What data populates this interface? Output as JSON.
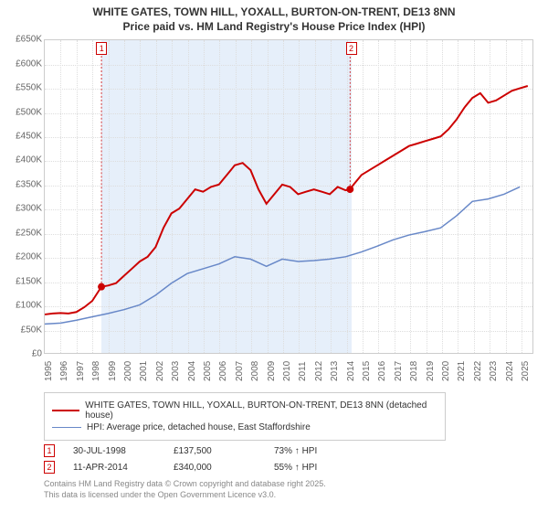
{
  "title_line1": "WHITE GATES, TOWN HILL, YOXALL, BURTON-ON-TRENT, DE13 8NN",
  "title_line2": "Price paid vs. HM Land Registry's House Price Index (HPI)",
  "chart": {
    "type": "line",
    "background_color": "#ffffff",
    "grid_color": "#dddddd",
    "border_color": "#cccccc",
    "x_min": 1995,
    "x_max": 2025.8,
    "y_min": 0,
    "y_max": 650000,
    "y_ticks": [
      0,
      50000,
      100000,
      150000,
      200000,
      250000,
      300000,
      350000,
      400000,
      450000,
      500000,
      550000,
      600000,
      650000
    ],
    "y_tick_labels": [
      "£0",
      "£50K",
      "£100K",
      "£150K",
      "£200K",
      "£250K",
      "£300K",
      "£350K",
      "£400K",
      "£450K",
      "£500K",
      "£550K",
      "£600K",
      "£650K"
    ],
    "x_ticks": [
      1995,
      1996,
      1997,
      1998,
      1999,
      2000,
      2001,
      2002,
      2003,
      2004,
      2005,
      2006,
      2007,
      2008,
      2009,
      2010,
      2011,
      2012,
      2013,
      2014,
      2015,
      2016,
      2017,
      2018,
      2019,
      2020,
      2021,
      2022,
      2023,
      2024,
      2025
    ],
    "shaded_start": 1998.58,
    "shaded_end": 2014.28,
    "shaded_color": "#e6effa",
    "series": [
      {
        "name": "property",
        "color": "#cc0000",
        "width": 2,
        "points": [
          [
            1995,
            80000
          ],
          [
            1995.5,
            82000
          ],
          [
            1996,
            83000
          ],
          [
            1996.5,
            82000
          ],
          [
            1997,
            85000
          ],
          [
            1997.5,
            95000
          ],
          [
            1998,
            108000
          ],
          [
            1998.58,
            137500
          ],
          [
            1999,
            140000
          ],
          [
            1999.5,
            145000
          ],
          [
            2000,
            160000
          ],
          [
            2000.5,
            175000
          ],
          [
            2001,
            190000
          ],
          [
            2001.5,
            200000
          ],
          [
            2002,
            220000
          ],
          [
            2002.5,
            260000
          ],
          [
            2003,
            290000
          ],
          [
            2003.5,
            300000
          ],
          [
            2004,
            320000
          ],
          [
            2004.5,
            340000
          ],
          [
            2005,
            335000
          ],
          [
            2005.5,
            345000
          ],
          [
            2006,
            350000
          ],
          [
            2006.5,
            370000
          ],
          [
            2007,
            390000
          ],
          [
            2007.5,
            395000
          ],
          [
            2008,
            380000
          ],
          [
            2008.5,
            340000
          ],
          [
            2009,
            310000
          ],
          [
            2009.5,
            330000
          ],
          [
            2010,
            350000
          ],
          [
            2010.5,
            345000
          ],
          [
            2011,
            330000
          ],
          [
            2011.5,
            335000
          ],
          [
            2012,
            340000
          ],
          [
            2012.5,
            335000
          ],
          [
            2013,
            330000
          ],
          [
            2013.5,
            345000
          ],
          [
            2014,
            338000
          ],
          [
            2014.28,
            340000
          ],
          [
            2014.5,
            350000
          ],
          [
            2015,
            370000
          ],
          [
            2015.5,
            380000
          ],
          [
            2016,
            390000
          ],
          [
            2016.5,
            400000
          ],
          [
            2017,
            410000
          ],
          [
            2017.5,
            420000
          ],
          [
            2018,
            430000
          ],
          [
            2018.5,
            435000
          ],
          [
            2019,
            440000
          ],
          [
            2019.5,
            445000
          ],
          [
            2020,
            450000
          ],
          [
            2020.5,
            465000
          ],
          [
            2021,
            485000
          ],
          [
            2021.5,
            510000
          ],
          [
            2022,
            530000
          ],
          [
            2022.5,
            540000
          ],
          [
            2023,
            520000
          ],
          [
            2023.5,
            525000
          ],
          [
            2024,
            535000
          ],
          [
            2024.5,
            545000
          ],
          [
            2025,
            550000
          ],
          [
            2025.5,
            555000
          ]
        ]
      },
      {
        "name": "hpi",
        "color": "#6888c8",
        "width": 1.5,
        "points": [
          [
            1995,
            60000
          ],
          [
            1996,
            62000
          ],
          [
            1997,
            68000
          ],
          [
            1998,
            75000
          ],
          [
            1999,
            82000
          ],
          [
            2000,
            90000
          ],
          [
            2001,
            100000
          ],
          [
            2002,
            120000
          ],
          [
            2003,
            145000
          ],
          [
            2004,
            165000
          ],
          [
            2005,
            175000
          ],
          [
            2006,
            185000
          ],
          [
            2007,
            200000
          ],
          [
            2008,
            195000
          ],
          [
            2009,
            180000
          ],
          [
            2010,
            195000
          ],
          [
            2011,
            190000
          ],
          [
            2012,
            192000
          ],
          [
            2013,
            195000
          ],
          [
            2014,
            200000
          ],
          [
            2015,
            210000
          ],
          [
            2016,
            222000
          ],
          [
            2017,
            235000
          ],
          [
            2018,
            245000
          ],
          [
            2019,
            252000
          ],
          [
            2020,
            260000
          ],
          [
            2021,
            285000
          ],
          [
            2022,
            315000
          ],
          [
            2023,
            320000
          ],
          [
            2024,
            330000
          ],
          [
            2025,
            345000
          ]
        ]
      }
    ],
    "markers": [
      {
        "num": "1",
        "x": 1998.58,
        "y": 137500
      },
      {
        "num": "2",
        "x": 2014.28,
        "y": 340000
      }
    ],
    "axis_label_fontsize": 10,
    "axis_label_color": "#666666"
  },
  "legend": {
    "border_color": "#cccccc",
    "items": [
      {
        "color": "#cc0000",
        "width": 2,
        "label": "WHITE GATES, TOWN HILL, YOXALL, BURTON-ON-TRENT, DE13 8NN (detached house)"
      },
      {
        "color": "#6888c8",
        "width": 1.5,
        "label": "HPI: Average price, detached house, East Staffordshire"
      }
    ]
  },
  "sales": [
    {
      "num": "1",
      "date": "30-JUL-1998",
      "price": "£137,500",
      "vs_hpi": "73% ↑ HPI"
    },
    {
      "num": "2",
      "date": "11-APR-2014",
      "price": "£340,000",
      "vs_hpi": "55% ↑ HPI"
    }
  ],
  "footer_line1": "Contains HM Land Registry data © Crown copyright and database right 2025.",
  "footer_line2": "This data is licensed under the Open Government Licence v3.0."
}
